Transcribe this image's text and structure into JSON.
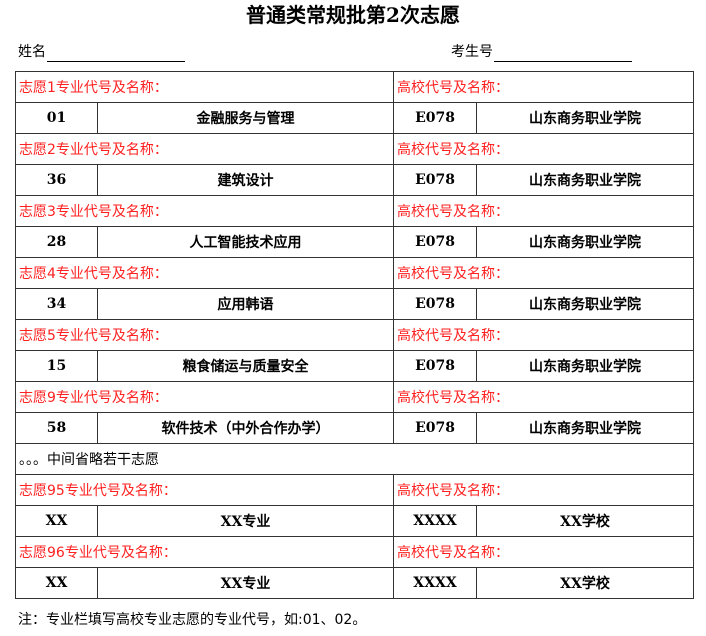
{
  "title": "普通类常规批第2次志愿",
  "name_label": "姓名",
  "exam_id_label": "考生号",
  "school_header": "高校代号及名称：",
  "choices": [
    {
      "header": "志愿1专业代号及名称：",
      "major_code": "01",
      "major_name": "金融服务与管理",
      "school_code": "E078",
      "school_name": "山东商务职业学院"
    },
    {
      "header": "志愿2专业代号及名称：",
      "major_code": "36",
      "major_name": "建筑设计",
      "school_code": "E078",
      "school_name": "山东商务职业学院"
    },
    {
      "header": "志愿3专业代号及名称：",
      "major_code": "28",
      "major_name": "人工智能技术应用",
      "school_code": "E078",
      "school_name": "山东商务职业学院"
    },
    {
      "header": "志愿4专业代号及名称：",
      "major_code": "34",
      "major_name": "应用韩语",
      "school_code": "E078",
      "school_name": "山东商务职业学院"
    },
    {
      "header": "志愿5专业代号及名称：",
      "major_code": "15",
      "major_name": "粮食储运与质量安全",
      "school_code": "E078",
      "school_name": "山东商务职业学院"
    },
    {
      "header": "志愿9专业代号及名称：",
      "major_code": "58",
      "major_name": "软件技术（中外合作办学）",
      "school_code": "E078",
      "school_name": "山东商务职业学院"
    }
  ],
  "omitted_note": "。。。中间省略若干志愿",
  "choices_end": [
    {
      "header": "志愿95专业代号及名称：",
      "major_code": "XX",
      "major_name": "XX专业",
      "school_code": "XXXX",
      "school_name": "XX学校"
    },
    {
      "header": "志愿96专业代号及名称：",
      "major_code": "XX",
      "major_name": "XX专业",
      "school_code": "XXXX",
      "school_name": "XX学校"
    }
  ],
  "footer_note": "注：专业栏填写高校专业志愿的专业代号，如:01、02。",
  "colors": {
    "header_text": "#ff2020"
  }
}
